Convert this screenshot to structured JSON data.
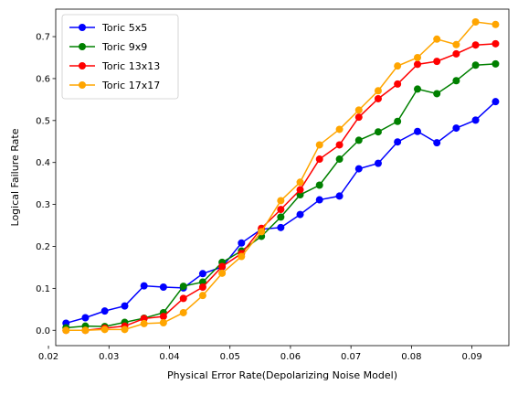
{
  "chart_data": {
    "type": "line",
    "title": "",
    "xlabel": "Physical Error Rate(Depolarizing Noise Model)",
    "ylabel": "Logical Failure Rate",
    "xlim": [
      0.0212,
      0.0961
    ],
    "ylim": [
      -0.0365,
      0.7655
    ],
    "xticks": [
      0.02,
      0.03,
      0.04,
      0.05,
      0.06,
      0.07,
      0.08,
      0.09
    ],
    "xtick_labels": [
      "0.02",
      "0.03",
      "0.04",
      "0.05",
      "0.06",
      "0.07",
      "0.08",
      "0.09"
    ],
    "yticks": [
      0.0,
      0.1,
      0.2,
      0.3,
      0.4,
      0.5,
      0.6,
      0.7
    ],
    "ytick_labels": [
      "0.0",
      "0.1",
      "0.2",
      "0.3",
      "0.4",
      "0.5",
      "0.6",
      "0.7"
    ],
    "grid": false,
    "legend_position": "top-left",
    "x": [
      0.0229,
      0.0261,
      0.0293,
      0.0326,
      0.0358,
      0.039,
      0.0423,
      0.0455,
      0.0487,
      0.0519,
      0.0552,
      0.0584,
      0.0616,
      0.0648,
      0.0681,
      0.0713,
      0.0745,
      0.0777,
      0.081,
      0.0842,
      0.0874,
      0.0906,
      0.0939
    ],
    "series": [
      {
        "name": "Toric 5x5",
        "color": "#0000ff",
        "values": [
          0.017,
          0.03,
          0.046,
          0.058,
          0.106,
          0.103,
          0.101,
          0.135,
          0.151,
          0.208,
          0.241,
          0.245,
          0.276,
          0.311,
          0.32,
          0.385,
          0.398,
          0.449,
          0.474,
          0.447,
          0.482,
          0.501,
          0.545
        ]
      },
      {
        "name": "Toric 9x9",
        "color": "#008000",
        "values": [
          0.006,
          0.01,
          0.009,
          0.019,
          0.029,
          0.042,
          0.105,
          0.115,
          0.162,
          0.189,
          0.224,
          0.27,
          0.323,
          0.346,
          0.408,
          0.453,
          0.473,
          0.498,
          0.575,
          0.564,
          0.595,
          0.632,
          0.635
        ]
      },
      {
        "name": "Toric 13x13",
        "color": "#ff0000",
        "values": [
          0.0,
          0.0,
          0.005,
          0.01,
          0.028,
          0.033,
          0.076,
          0.103,
          0.152,
          0.183,
          0.243,
          0.288,
          0.335,
          0.408,
          0.442,
          0.508,
          0.552,
          0.587,
          0.634,
          0.641,
          0.659,
          0.68,
          0.683
        ]
      },
      {
        "name": "Toric 17x17",
        "color": "#ffa500",
        "values": [
          0.0,
          0.0,
          0.002,
          0.002,
          0.016,
          0.018,
          0.042,
          0.083,
          0.136,
          0.176,
          0.235,
          0.309,
          0.353,
          0.442,
          0.479,
          0.525,
          0.571,
          0.63,
          0.65,
          0.694,
          0.681,
          0.735,
          0.729
        ]
      }
    ]
  }
}
